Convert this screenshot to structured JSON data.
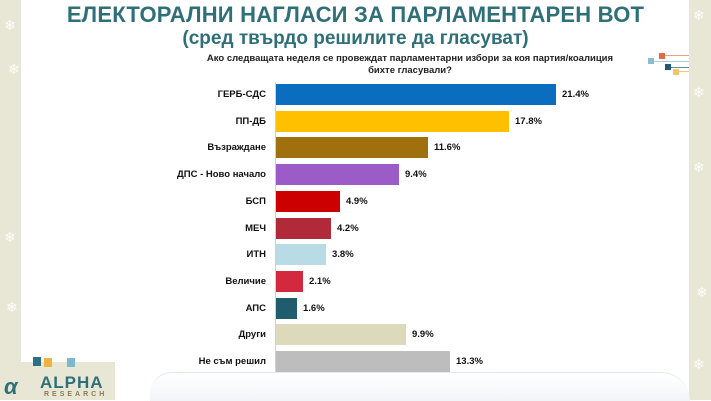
{
  "title": {
    "line1": "ЕЛЕКТОРАЛНИ НАГЛАСИ ЗА ПАРЛАМЕНТАРЕН ВОТ",
    "line2": "(сред твърдо решилите да гласуват)"
  },
  "question": {
    "line1": "Ако следващата неделя се провеждат парламентарни избори за коя партия/коалиция",
    "line2": "бихте гласували?"
  },
  "logo": {
    "mark": "α",
    "name": "ALPHA",
    "sub": "RESEARCH"
  },
  "colors": {
    "title": "#2f6f78",
    "background_strip": "#e8e7d6"
  },
  "rows": [
    {
      "label": "ГЕРБ-СДС",
      "value": "21.4%",
      "color": "#0b6dc0"
    },
    {
      "label": "ПП-ДБ",
      "value": "17.8%",
      "color": "#ffc000"
    },
    {
      "label": "Възраждане",
      "value": "11.6%",
      "color": "#a0700f"
    },
    {
      "label": "ДПС - Ново начало",
      "value": "9.4%",
      "color": "#9c5cc8"
    },
    {
      "label": "БСП",
      "value": "4.9%",
      "color": "#cc0000"
    },
    {
      "label": "МЕЧ",
      "value": "4.2%",
      "color": "#b02a3a"
    },
    {
      "label": "ИТН",
      "value": "3.8%",
      "color": "#b9dbe5"
    },
    {
      "label": "Величие",
      "value": "2.1%",
      "color": "#d2293f"
    },
    {
      "label": "АПС",
      "value": "1.6%",
      "color": "#1f5c6e"
    },
    {
      "label": "Други",
      "value": "9.9%",
      "color": "#dcd9bd"
    },
    {
      "label": "Не съм решил",
      "value": "13.3%",
      "color": "#bdbdbd"
    }
  ],
  "chart_data": {
    "type": "bar",
    "orientation": "horizontal",
    "title": "ЕЛЕКТОРАЛНИ НАГЛАСИ ЗА ПАРЛАМЕНТАРЕН ВОТ (сред твърдо решилите да гласуват)",
    "subtitle": "Ако следващата неделя се провеждат парламентарни избори за коя партия/коалиция бихте гласували?",
    "categories": [
      "ГЕРБ-СДС",
      "ПП-ДБ",
      "Възраждане",
      "ДПС - Ново начало",
      "БСП",
      "МЕЧ",
      "ИТН",
      "Величие",
      "АПС",
      "Други",
      "Не съм решил"
    ],
    "values": [
      21.4,
      17.8,
      11.6,
      9.4,
      4.9,
      4.2,
      3.8,
      2.1,
      1.6,
      9.9,
      13.3
    ],
    "unit": "%",
    "xlabel": "",
    "ylabel": "",
    "grid": false,
    "legend": "none",
    "data_labels": true
  }
}
